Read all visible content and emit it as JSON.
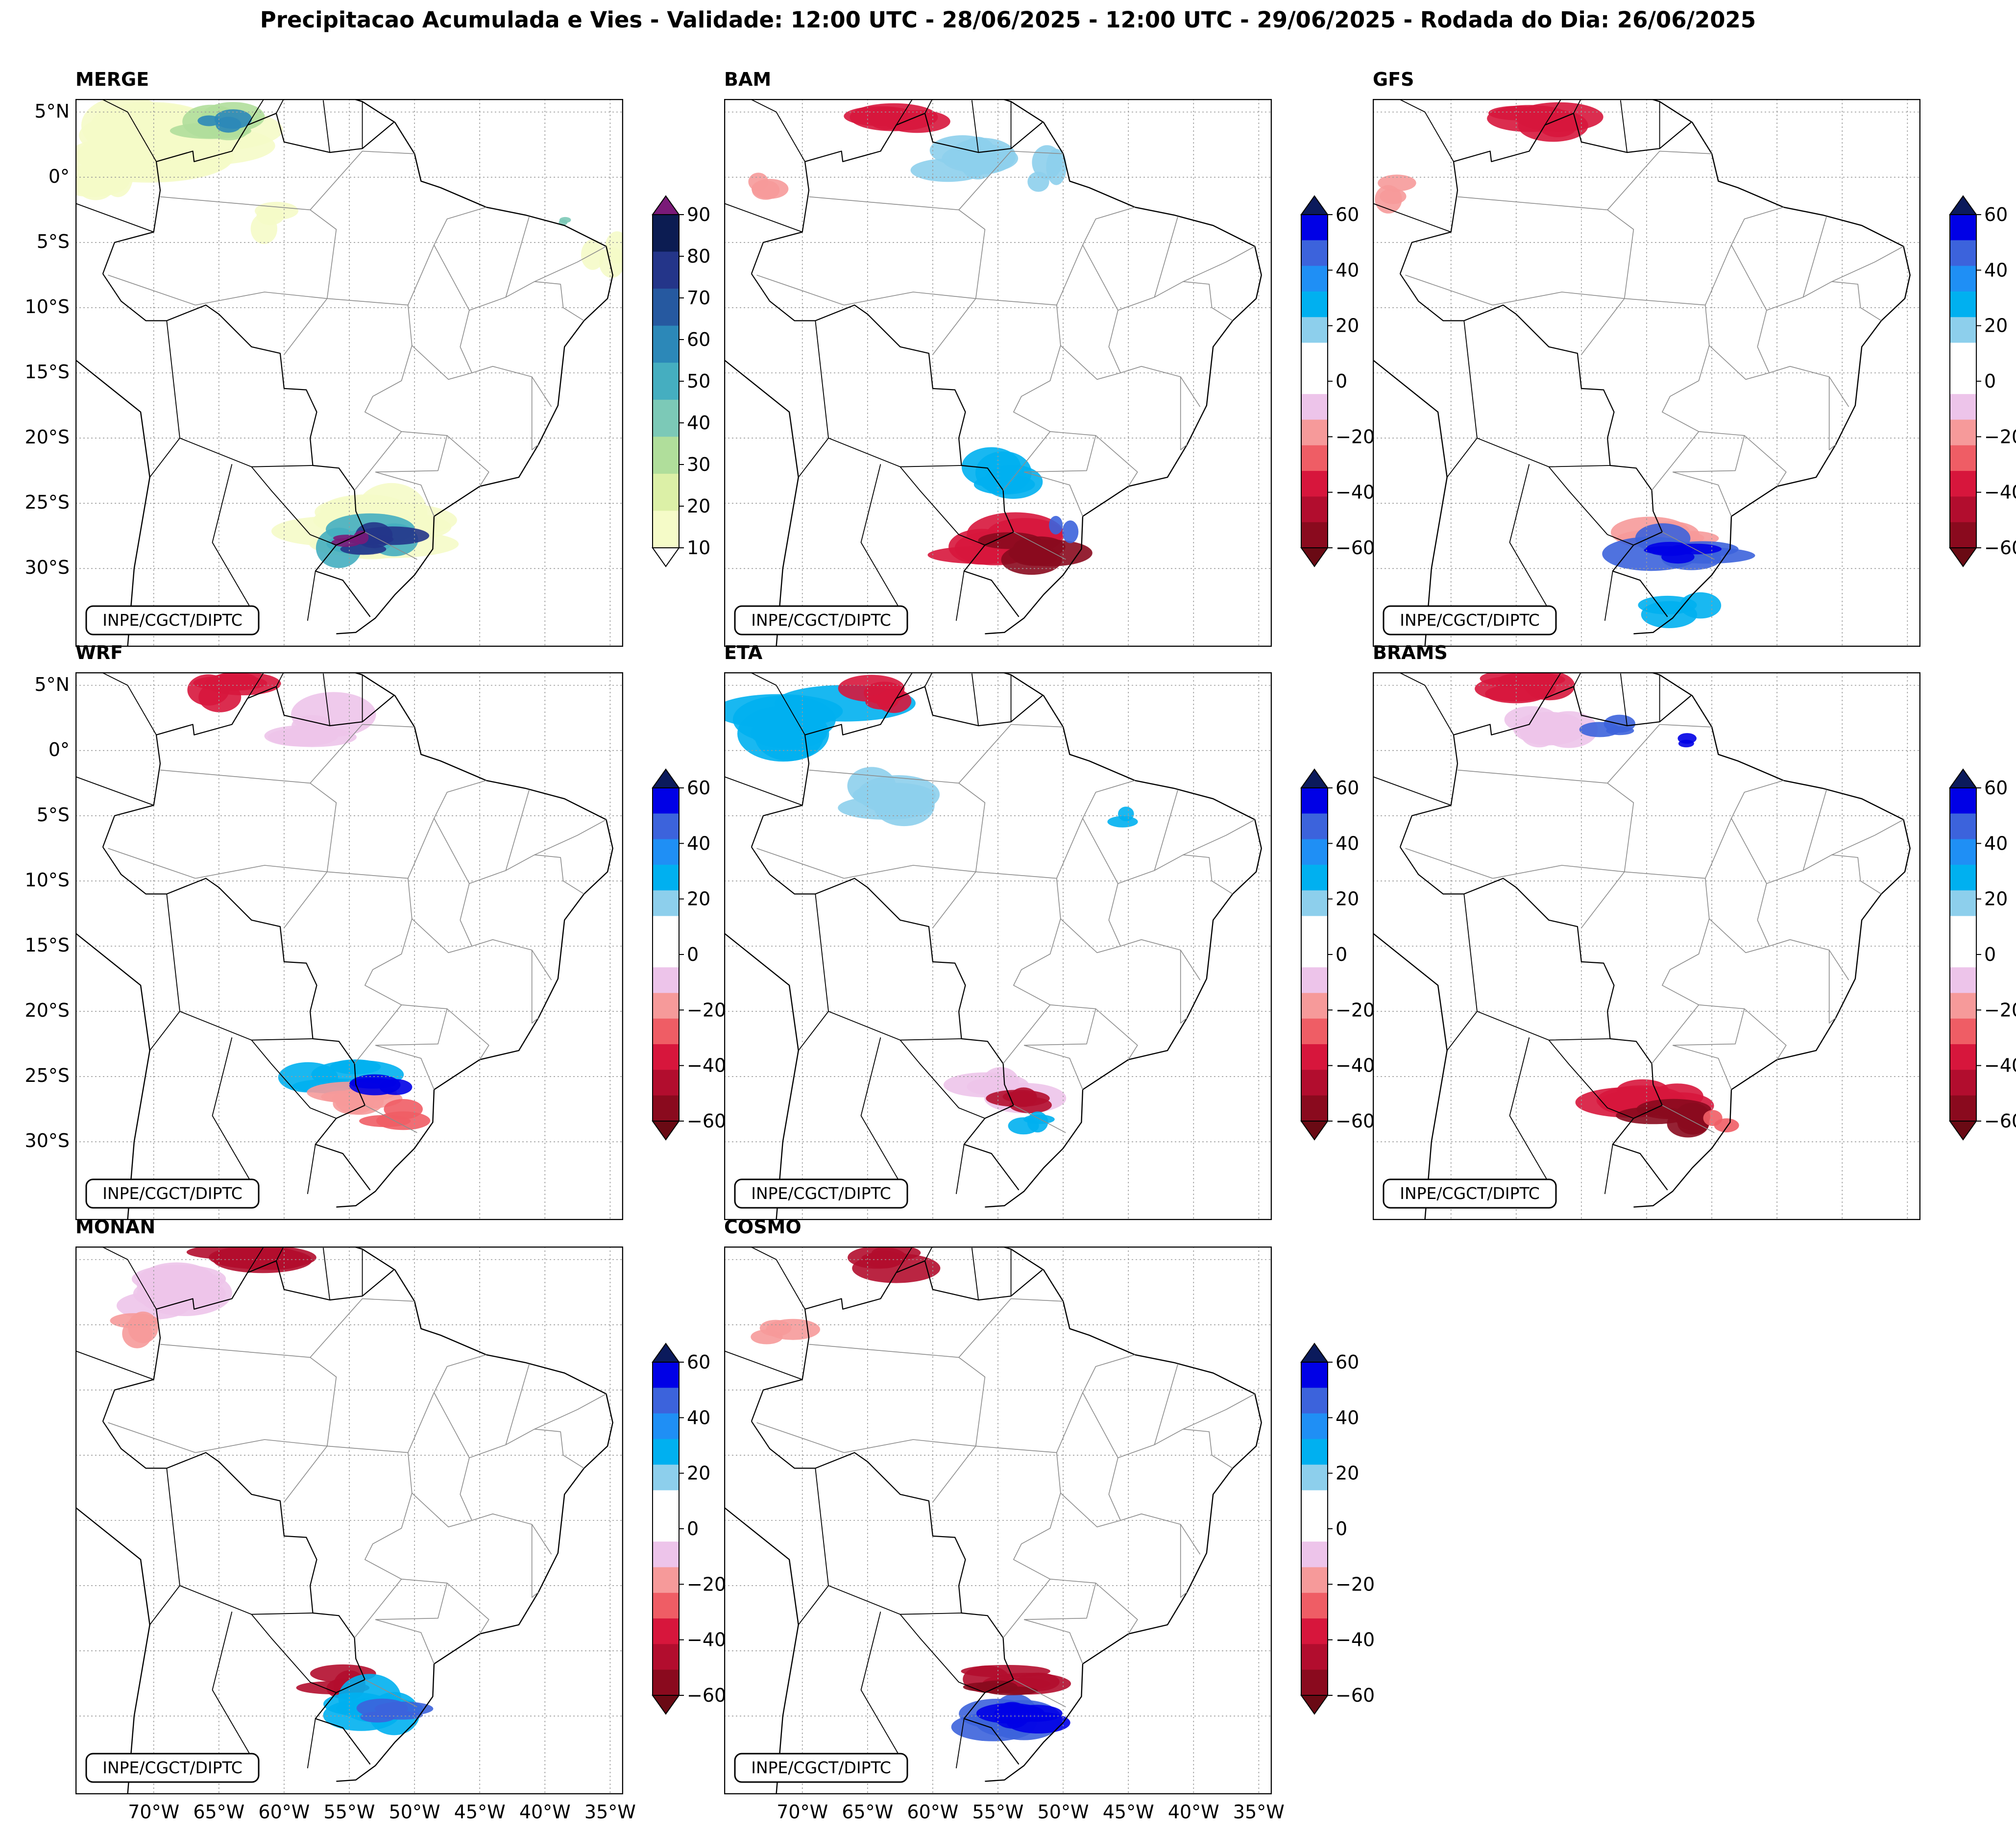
{
  "title": "Precipitacao Acumulada e Vies - Validade: 12:00 UTC - 28/06/2025 - 12:00 UTC - 29/06/2025 - Rodada do Dia: 26/06/2025",
  "credit": "INPE/CGCT/DIPTC",
  "panels": [
    {
      "name": "MERGE",
      "kind": "precip"
    },
    {
      "name": "BAM",
      "kind": "bias"
    },
    {
      "name": "GFS",
      "kind": "bias"
    },
    {
      "name": "WRF",
      "kind": "bias"
    },
    {
      "name": "ETA",
      "kind": "bias"
    },
    {
      "name": "BRAMS",
      "kind": "bias"
    },
    {
      "name": "MONAN",
      "kind": "bias"
    },
    {
      "name": "COSMO",
      "kind": "bias"
    }
  ],
  "lat_labels": [
    "5°N",
    "0°",
    "5°S",
    "10°S",
    "15°S",
    "20°S",
    "25°S",
    "30°S"
  ],
  "lon_labels": [
    "70°W",
    "65°W",
    "60°W",
    "55°W",
    "50°W",
    "45°W",
    "40°W",
    "35°W"
  ],
  "colorbars": {
    "precip": {
      "ticks": [
        "10",
        "20",
        "30",
        "40",
        "50",
        "60",
        "70",
        "80",
        "90"
      ],
      "colors": [
        "#f5fbc8",
        "#dcf0a7",
        "#b0de9b",
        "#7cc9b7",
        "#45aec0",
        "#2c88b8",
        "#2659a0",
        "#243589",
        "#0c1c52"
      ],
      "over": "#7a1a78",
      "under": "#ffffff"
    },
    "bias": {
      "ticks": [
        "60",
        "40",
        "20",
        "0",
        "−20",
        "−40",
        "−60"
      ],
      "colors": [
        "#0000e6",
        "#3c63dc",
        "#1f8ff5",
        "#00b0f0",
        "#8dcfec",
        "#ffffff",
        "#ffffff",
        "#edc4ea",
        "#f69a9a",
        "#ef5d65",
        "#d7163c",
        "#b20d2e",
        "#8a0a1e"
      ],
      "over": "#0b1a5c",
      "under": "#6a0a14"
    }
  }
}
